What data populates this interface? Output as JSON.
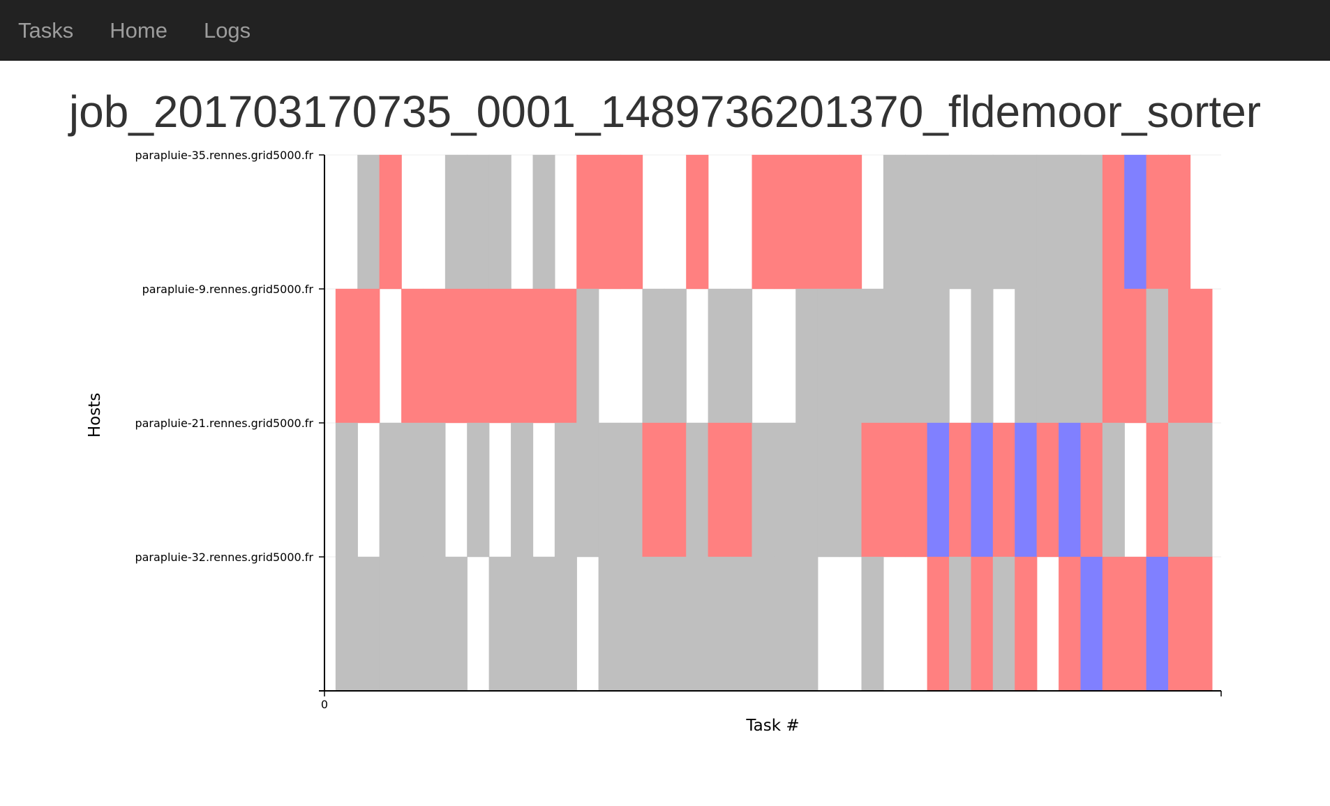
{
  "nav": {
    "items": [
      {
        "label": "Tasks"
      },
      {
        "label": "Home"
      },
      {
        "label": "Logs"
      }
    ]
  },
  "page": {
    "title": "job_201703170735_0001_1489736201370_fldemoor_sorter"
  },
  "chart_data": {
    "type": "heatmap",
    "title": "",
    "xlabel": "Task #",
    "ylabel": "Hosts",
    "x_tick_labels": [
      "0"
    ],
    "hosts": [
      "parapluie-35.rennes.grid5000.fr",
      "parapluie-9.rennes.grid5000.fr",
      "parapluie-21.rennes.grid5000.fr",
      "parapluie-32.rennes.grid5000.fr"
    ],
    "colors": {
      "gray": "#bfbfbf",
      "red": "#ff8080",
      "blue": "#8080ff"
    },
    "lanes": [
      [
        [
          1,
          "gray"
        ],
        [
          2,
          "red"
        ],
        [
          5,
          "gray"
        ],
        [
          6,
          "gray"
        ],
        [
          7,
          "gray"
        ],
        [
          9,
          "gray"
        ],
        [
          11,
          "red"
        ],
        [
          12,
          "red"
        ],
        [
          13,
          "red"
        ],
        [
          16,
          "red"
        ],
        [
          19,
          "red"
        ],
        [
          20,
          "red"
        ],
        [
          21,
          "red"
        ],
        [
          22,
          "red"
        ],
        [
          23,
          "red"
        ],
        [
          25,
          "gray"
        ],
        [
          26,
          "gray"
        ],
        [
          27,
          "gray"
        ],
        [
          28,
          "gray"
        ],
        [
          29,
          "gray"
        ],
        [
          30,
          "gray"
        ],
        [
          31,
          "gray"
        ],
        [
          32,
          "gray"
        ],
        [
          33,
          "gray"
        ],
        [
          34,
          "gray"
        ],
        [
          35,
          "red"
        ],
        [
          36,
          "blue"
        ],
        [
          37,
          "red"
        ],
        [
          38,
          "red"
        ]
      ],
      [
        [
          0,
          "red"
        ],
        [
          1,
          "red"
        ],
        [
          3,
          "red"
        ],
        [
          4,
          "red"
        ],
        [
          5,
          "red"
        ],
        [
          6,
          "red"
        ],
        [
          7,
          "red"
        ],
        [
          8,
          "red"
        ],
        [
          9,
          "red"
        ],
        [
          10,
          "red"
        ],
        [
          11,
          "gray"
        ],
        [
          14,
          "gray"
        ],
        [
          15,
          "gray"
        ],
        [
          17,
          "gray"
        ],
        [
          18,
          "gray"
        ],
        [
          21,
          "gray"
        ],
        [
          22,
          "gray"
        ],
        [
          23,
          "gray"
        ],
        [
          24,
          "gray"
        ],
        [
          25,
          "gray"
        ],
        [
          26,
          "gray"
        ],
        [
          27,
          "gray"
        ],
        [
          29,
          "gray"
        ],
        [
          31,
          "gray"
        ],
        [
          32,
          "gray"
        ],
        [
          33,
          "gray"
        ],
        [
          34,
          "gray"
        ],
        [
          35,
          "red"
        ],
        [
          36,
          "red"
        ],
        [
          37,
          "gray"
        ],
        [
          38,
          "red"
        ],
        [
          39,
          "red"
        ]
      ],
      [
        [
          0,
          "gray"
        ],
        [
          2,
          "gray"
        ],
        [
          3,
          "gray"
        ],
        [
          4,
          "gray"
        ],
        [
          6,
          "gray"
        ],
        [
          8,
          "gray"
        ],
        [
          10,
          "gray"
        ],
        [
          11,
          "gray"
        ],
        [
          12,
          "gray"
        ],
        [
          13,
          "gray"
        ],
        [
          14,
          "red"
        ],
        [
          15,
          "red"
        ],
        [
          16,
          "gray"
        ],
        [
          17,
          "red"
        ],
        [
          18,
          "red"
        ],
        [
          19,
          "gray"
        ],
        [
          20,
          "gray"
        ],
        [
          21,
          "gray"
        ],
        [
          22,
          "gray"
        ],
        [
          23,
          "gray"
        ],
        [
          24,
          "red"
        ],
        [
          25,
          "red"
        ],
        [
          26,
          "red"
        ],
        [
          27,
          "blue"
        ],
        [
          28,
          "red"
        ],
        [
          29,
          "blue"
        ],
        [
          30,
          "red"
        ],
        [
          31,
          "blue"
        ],
        [
          32,
          "red"
        ],
        [
          33,
          "blue"
        ],
        [
          34,
          "red"
        ],
        [
          35,
          "gray"
        ],
        [
          37,
          "red"
        ],
        [
          38,
          "gray"
        ],
        [
          39,
          "gray"
        ]
      ],
      [
        [
          0,
          "gray"
        ],
        [
          1,
          "gray"
        ],
        [
          2,
          "gray"
        ],
        [
          3,
          "gray"
        ],
        [
          4,
          "gray"
        ],
        [
          5,
          "gray"
        ],
        [
          7,
          "gray"
        ],
        [
          8,
          "gray"
        ],
        [
          9,
          "gray"
        ],
        [
          10,
          "gray"
        ],
        [
          12,
          "gray"
        ],
        [
          13,
          "gray"
        ],
        [
          14,
          "gray"
        ],
        [
          15,
          "gray"
        ],
        [
          16,
          "gray"
        ],
        [
          17,
          "gray"
        ],
        [
          18,
          "gray"
        ],
        [
          19,
          "gray"
        ],
        [
          20,
          "gray"
        ],
        [
          21,
          "gray"
        ],
        [
          24,
          "gray"
        ],
        [
          27,
          "red"
        ],
        [
          28,
          "gray"
        ],
        [
          29,
          "red"
        ],
        [
          30,
          "gray"
        ],
        [
          31,
          "red"
        ],
        [
          33,
          "red"
        ],
        [
          34,
          "blue"
        ],
        [
          35,
          "red"
        ],
        [
          36,
          "red"
        ],
        [
          37,
          "blue"
        ],
        [
          38,
          "red"
        ],
        [
          39,
          "red"
        ]
      ]
    ]
  }
}
